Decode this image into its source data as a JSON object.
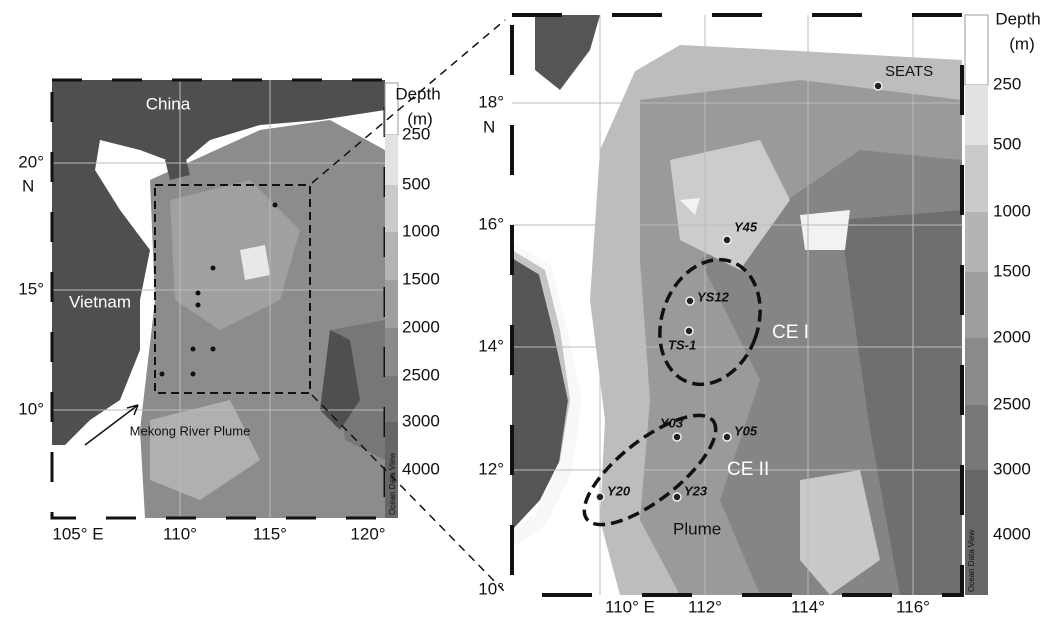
{
  "left_map": {
    "x_ticks": [
      "105° E",
      "110°",
      "115°",
      "120°"
    ],
    "y_ticks": [
      "10°",
      "15°",
      "20°"
    ],
    "y_unit": "N",
    "places": [
      "China",
      "Vietnam"
    ],
    "annotation": "Mekong River Plume",
    "colorbar": {
      "title": [
        "Depth",
        "(m)"
      ],
      "labels": [
        "250",
        "500",
        "1000",
        "1500",
        "2000",
        "2500",
        "3000",
        "4000"
      ]
    },
    "watermark": "Ocean Data View"
  },
  "right_map": {
    "x_ticks": [
      "110° E",
      "112°",
      "114°",
      "116°"
    ],
    "y_ticks": [
      "10°",
      "12°",
      "14°",
      "16°",
      "18°"
    ],
    "y_unit": "N",
    "stations": [
      "SEATS",
      "Y45",
      "YS12",
      "TS-1",
      "Y03",
      "Y05",
      "Y20",
      "Y23"
    ],
    "features": [
      "CE I",
      "CE II",
      "Plume"
    ],
    "colorbar": {
      "title": [
        "Depth",
        "(m)"
      ],
      "labels": [
        "250",
        "500",
        "1000",
        "1500",
        "2000",
        "2500",
        "3000",
        "4000"
      ]
    },
    "watermark": "Ocean Data View"
  }
}
